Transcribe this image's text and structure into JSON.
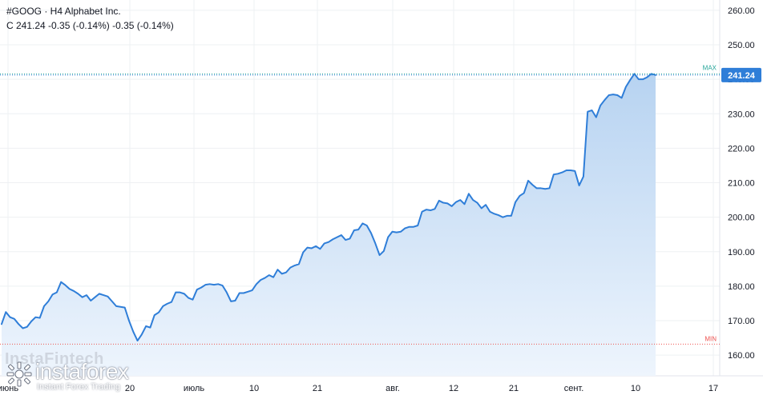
{
  "header": {
    "symbol": "#GOOG · H4 Alphabet Inc.",
    "ohlc": "C 241.24 -0.35 (-0.14%) -0.35 (-0.14%)"
  },
  "brand": {
    "overlay": "InstaFintech",
    "name": "instaforex",
    "tagline": "Instant Forex Trading"
  },
  "chart_data": {
    "type": "area",
    "title": "",
    "ylim": [
      154,
      263
    ],
    "yticks": [
      160,
      170,
      180,
      190,
      200,
      210,
      220,
      230,
      240,
      250,
      260
    ],
    "ytick_labels": [
      "160.00",
      "170.00",
      "180.00",
      "190.00",
      "200.00",
      "210.00",
      "220.00",
      "230.00",
      "240.00",
      "250.00",
      "260.00"
    ],
    "xticks": [
      "июнь",
      "20",
      "июль",
      "10",
      "21",
      "авг.",
      "12",
      "21",
      "сент.",
      "10",
      "17"
    ],
    "last_price": 241.24,
    "last_price_label": "241.24",
    "max_label": "MAX",
    "min_label": "MIN",
    "max_value": 241.59,
    "min_value": 163.2,
    "series": [
      {
        "values": [
          169.0,
          172.5,
          171.0,
          170.5,
          169.0,
          167.8,
          168.2,
          169.8,
          171.0,
          170.8,
          174.2,
          175.6,
          177.6,
          178.2,
          181.2,
          180.3,
          179.2,
          178.6,
          177.8,
          176.8,
          177.4,
          175.8,
          176.8,
          177.8,
          177.4,
          177.0,
          175.6,
          174.2,
          174.0,
          173.8,
          170.0,
          166.8,
          164.2,
          166.0,
          168.4,
          168.0,
          171.6,
          172.4,
          174.2,
          174.9,
          175.4,
          178.2,
          178.2,
          177.8,
          176.6,
          176.1,
          179.0,
          179.6,
          180.4,
          180.6,
          180.4,
          180.6,
          180.2,
          178.2,
          175.6,
          175.8,
          178.0,
          178.0,
          178.4,
          178.8,
          180.6,
          181.8,
          182.4,
          183.2,
          182.6,
          184.8,
          183.6,
          184.0,
          185.4,
          186.0,
          186.4,
          189.8,
          191.2,
          191.0,
          191.6,
          190.8,
          192.4,
          192.8,
          193.6,
          194.2,
          194.8,
          193.4,
          193.8,
          196.2,
          196.4,
          198.2,
          197.6,
          195.4,
          192.4,
          189.0,
          190.2,
          194.2,
          195.8,
          195.6,
          195.8,
          196.8,
          197.2,
          197.2,
          197.6,
          201.6,
          202.2,
          202.0,
          202.4,
          204.8,
          204.2,
          204.0,
          203.2,
          204.4,
          205.0,
          203.8,
          206.8,
          205.0,
          204.2,
          202.6,
          203.6,
          201.6,
          201.0,
          200.6,
          200.0,
          200.4,
          200.4,
          204.4,
          206.2,
          207.0,
          210.6,
          209.4,
          208.4,
          208.4,
          208.2,
          208.4,
          212.4,
          212.6,
          213.0,
          213.6,
          213.6,
          213.4,
          209.2,
          211.8,
          230.6,
          231.0,
          229.0,
          232.4,
          234.0,
          235.4,
          235.6,
          235.4,
          234.6,
          237.8,
          239.8,
          241.6,
          240.0,
          240.0,
          240.6,
          241.59,
          241.24
        ]
      }
    ],
    "colors": {
      "line": "#2f7ed8",
      "fill_top": "#b7d3f1",
      "fill_bottom": "#eef5fd",
      "max_line": "#26a69a",
      "min_line": "#ef5350",
      "price_label_bg": "#2f7ed8",
      "grid": "#eef0f3"
    },
    "grid": true
  }
}
